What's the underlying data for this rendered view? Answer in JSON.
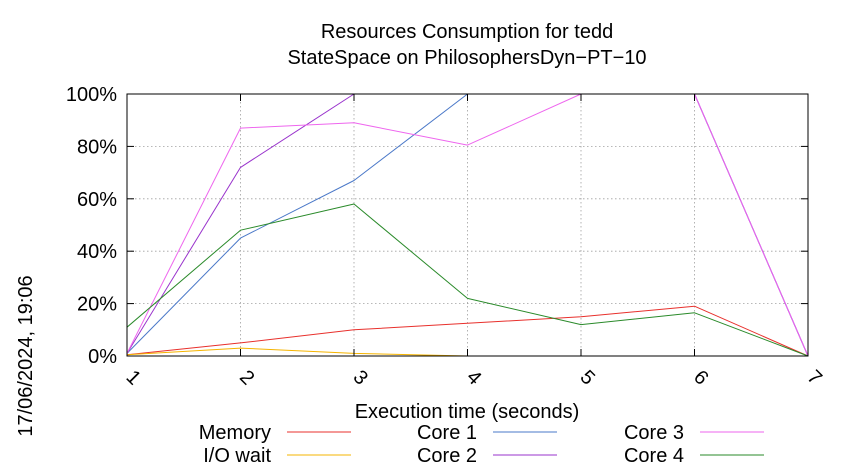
{
  "chart_data": {
    "type": "line",
    "title": "Resources Consumption for tedd",
    "subtitle": "StateSpace on PhilosophersDyn−PT−10",
    "xlabel": "Execution time (seconds)",
    "ylabel": "",
    "side_label": "17/06/2024, 19:06",
    "xlim": [
      1,
      7
    ],
    "ylim": [
      0,
      100
    ],
    "x_ticks": [
      1,
      2,
      3,
      4,
      5,
      6,
      7
    ],
    "y_ticks": [
      {
        "value": 0,
        "label": "0%"
      },
      {
        "value": 20,
        "label": "20%"
      },
      {
        "value": 40,
        "label": "40%"
      },
      {
        "value": 60,
        "label": "60%"
      },
      {
        "value": 80,
        "label": "80%"
      },
      {
        "value": 100,
        "label": "100%"
      }
    ],
    "grid": true,
    "legend_position": "bottom",
    "series": [
      {
        "name": "Memory",
        "color": "#e8302c",
        "points": [
          [
            1,
            0.5
          ],
          [
            2,
            5
          ],
          [
            3,
            10
          ],
          [
            4,
            12.5
          ],
          [
            5,
            15
          ],
          [
            6,
            19
          ],
          [
            7,
            0
          ]
        ]
      },
      {
        "name": "I/O wait",
        "color": "#f5b400",
        "points": [
          [
            1,
            0.5
          ],
          [
            2,
            3
          ],
          [
            3,
            1
          ],
          [
            4,
            0
          ],
          [
            5,
            0
          ],
          [
            6,
            0
          ],
          [
            7,
            0
          ]
        ]
      },
      {
        "name": "Core 1",
        "color": "#4a78c8",
        "points": [
          [
            1,
            1
          ],
          [
            2,
            45
          ],
          [
            3,
            67
          ],
          [
            4,
            100
          ],
          [
            5,
            100
          ],
          [
            6,
            100
          ],
          [
            7,
            0
          ]
        ]
      },
      {
        "name": "Core 2",
        "color": "#9933cc",
        "points": [
          [
            1,
            1
          ],
          [
            2,
            72
          ],
          [
            3,
            100
          ],
          [
            4,
            100
          ],
          [
            5,
            100
          ],
          [
            6,
            100
          ],
          [
            7,
            0
          ]
        ]
      },
      {
        "name": "Core 3",
        "color": "#ee66ee",
        "points": [
          [
            1,
            1
          ],
          [
            2,
            87
          ],
          [
            3,
            89
          ],
          [
            4,
            80.5
          ],
          [
            5,
            100
          ],
          [
            6,
            100
          ],
          [
            7,
            0
          ]
        ]
      },
      {
        "name": "Core 4",
        "color": "#2a8a2a",
        "points": [
          [
            1,
            11
          ],
          [
            2,
            48
          ],
          [
            3,
            58
          ],
          [
            4,
            22
          ],
          [
            5,
            12
          ],
          [
            6,
            16.5
          ],
          [
            7,
            0
          ]
        ]
      }
    ]
  }
}
